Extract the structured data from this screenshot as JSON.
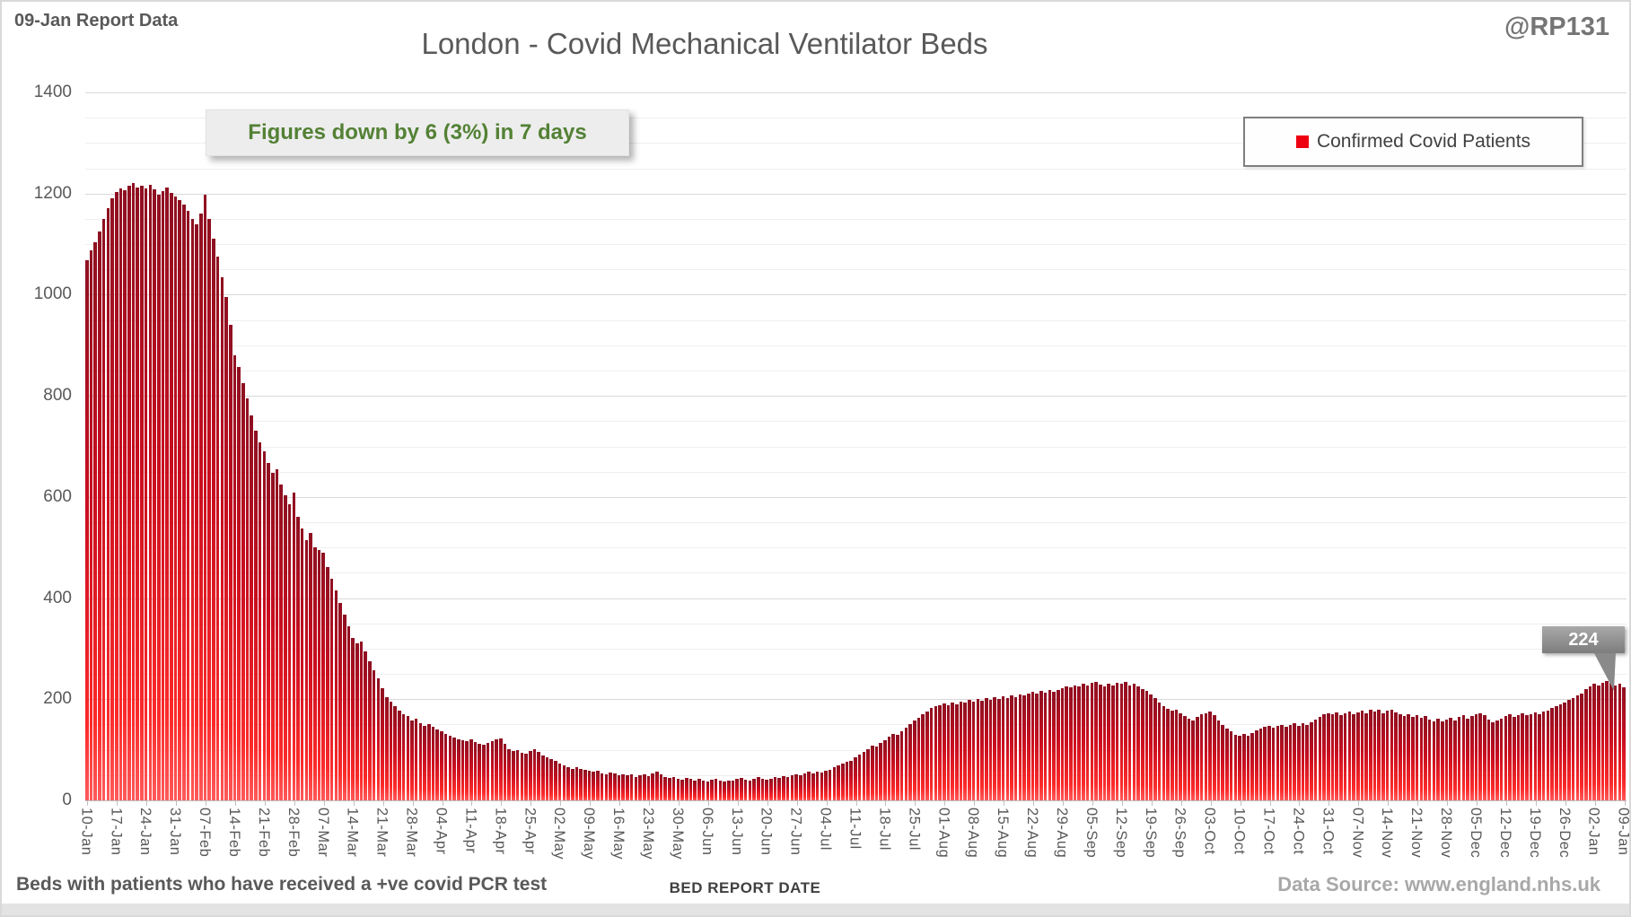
{
  "page": {
    "report_label": "09-Jan Report Data",
    "handle": "@RP131"
  },
  "chart": {
    "title": "London - Covid Mechanical Ventilator Beds",
    "annotation": "Figures down by 6 (3%) in 7 days",
    "legend": "Confirmed Covid Patients",
    "callout_value": "224",
    "x_axis_title": "BED REPORT DATE",
    "footnote": "Beds with patients who have received a +ve covid PCR test",
    "data_source": "Data Source: www.england.nhs.uk"
  },
  "colors": {
    "annotation_green": "#538135",
    "legend_marker_red": "#ee0011",
    "bar_gradient_top": "#8e1021",
    "bar_gradient_bottom": "#fb2a2a"
  },
  "chart_data": {
    "type": "bar",
    "title": "London - Covid Mechanical Ventilator Beds",
    "series_name": "Confirmed Covid Patients",
    "xlabel": "BED REPORT DATE",
    "ylabel": "",
    "ylim": [
      0,
      1400
    ],
    "y_major_step": 200,
    "y_minor_step": 50,
    "y_tick_labels": [
      "0",
      "200",
      "400",
      "600",
      "800",
      "1000",
      "1200",
      "1400"
    ],
    "legend_position": "top-right",
    "grid": "horizontal",
    "x_tick_every_days": 7,
    "x_tick_labels": [
      "10-Jan",
      "17-Jan",
      "24-Jan",
      "31-Jan",
      "07-Feb",
      "14-Feb",
      "21-Feb",
      "28-Feb",
      "07-Mar",
      "14-Mar",
      "21-Mar",
      "28-Mar",
      "04-Apr",
      "11-Apr",
      "18-Apr",
      "25-Apr",
      "02-May",
      "09-May",
      "16-May",
      "23-May",
      "30-May",
      "06-Jun",
      "13-Jun",
      "20-Jun",
      "27-Jun",
      "04-Jul",
      "11-Jul",
      "18-Jul",
      "25-Jul",
      "01-Aug",
      "08-Aug",
      "15-Aug",
      "22-Aug",
      "29-Aug",
      "05-Sep",
      "12-Sep",
      "19-Sep",
      "26-Sep",
      "03-Oct",
      "10-Oct",
      "17-Oct",
      "24-Oct",
      "31-Oct",
      "07-Nov",
      "14-Nov",
      "21-Nov",
      "28-Nov",
      "05-Dec",
      "12-Dec",
      "19-Dec",
      "26-Dec",
      "02-Jan",
      "09-Jan"
    ],
    "values_daily_estimated": [
      1068,
      1088,
      1103,
      1125,
      1150,
      1172,
      1190,
      1203,
      1210,
      1206,
      1215,
      1220,
      1212,
      1216,
      1211,
      1218,
      1208,
      1198,
      1205,
      1212,
      1202,
      1195,
      1188,
      1178,
      1165,
      1150,
      1140,
      1160,
      1198,
      1150,
      1110,
      1075,
      1035,
      995,
      940,
      880,
      858,
      825,
      795,
      762,
      732,
      708,
      690,
      668,
      648,
      655,
      625,
      603,
      585,
      608,
      560,
      538,
      515,
      528,
      500,
      495,
      490,
      462,
      438,
      415,
      390,
      368,
      345,
      322,
      310,
      315,
      295,
      275,
      258,
      242,
      222,
      205,
      196,
      186,
      178,
      171,
      166,
      158,
      161,
      153,
      148,
      151,
      145,
      140,
      137,
      132,
      128,
      124,
      121,
      119,
      117,
      120,
      115,
      112,
      110,
      114,
      117,
      120,
      122,
      111,
      101,
      97,
      99,
      95,
      93,
      98,
      102,
      96,
      89,
      86,
      81,
      78,
      73,
      69,
      66,
      63,
      66,
      63,
      60,
      58,
      56,
      58,
      54,
      52,
      55,
      53,
      50,
      52,
      49,
      51,
      47,
      50,
      52,
      48,
      53,
      56,
      51,
      47,
      44,
      46,
      43,
      41,
      44,
      42,
      39,
      42,
      40,
      38,
      41,
      43,
      40,
      37,
      40,
      39,
      42,
      45,
      41,
      39,
      43,
      46,
      43,
      41,
      43,
      47,
      45,
      48,
      46,
      49,
      51,
      49,
      53,
      56,
      54,
      57,
      55,
      59,
      61,
      66,
      69,
      73,
      76,
      79,
      86,
      91,
      96,
      101,
      109,
      106,
      113,
      119,
      126,
      131,
      129,
      136,
      143,
      151,
      158,
      164,
      170,
      176,
      182,
      186,
      189,
      192,
      188,
      194,
      190,
      196,
      193,
      198,
      195,
      200,
      197,
      203,
      199,
      205,
      201,
      206,
      203,
      208,
      205,
      210,
      207,
      212,
      215,
      211,
      217,
      213,
      218,
      214,
      219,
      222,
      226,
      223,
      228,
      225,
      230,
      227,
      232,
      235,
      229,
      226,
      231,
      228,
      233,
      230,
      234,
      228,
      231,
      226,
      221,
      216,
      210,
      202,
      194,
      186,
      181,
      177,
      179,
      172,
      166,
      162,
      158,
      165,
      170,
      172,
      175,
      168,
      158,
      150,
      142,
      136,
      130,
      127,
      132,
      128,
      134,
      138,
      142,
      145,
      148,
      144,
      147,
      150,
      146,
      149,
      152,
      148,
      153,
      150,
      155,
      160,
      165,
      170,
      173,
      170,
      174,
      168,
      172,
      176,
      171,
      174,
      178,
      172,
      180,
      176,
      179,
      173,
      177,
      180,
      174,
      170,
      167,
      171,
      165,
      168,
      163,
      166,
      160,
      157,
      161,
      156,
      160,
      163,
      158,
      165,
      168,
      162,
      166,
      170,
      173,
      168,
      160,
      155,
      158,
      162,
      166,
      170,
      165,
      169,
      172,
      168,
      171,
      174,
      170,
      175,
      178,
      182,
      186,
      190,
      194,
      198,
      203,
      207,
      212,
      220,
      225,
      230,
      227,
      233,
      236,
      232,
      228,
      230,
      224
    ],
    "last_value_label": 224
  }
}
